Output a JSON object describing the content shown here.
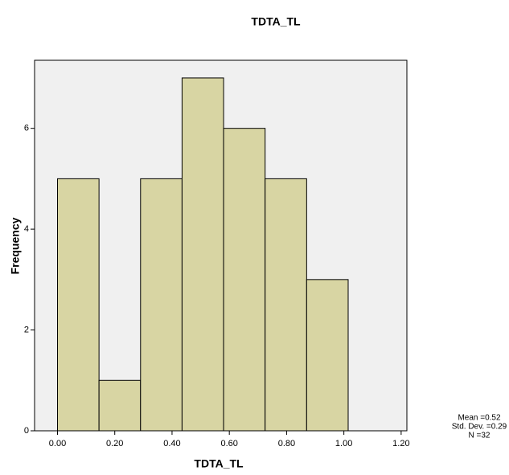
{
  "chart_data": {
    "type": "histogram",
    "title": "TDTA_TL",
    "x_label": "TDTA_TL",
    "y_label": "Frequency",
    "bins": [
      0,
      0.145,
      0.29,
      0.435,
      0.58,
      0.725,
      0.87,
      1.015
    ],
    "values": [
      5,
      1,
      5,
      7,
      6,
      5,
      3
    ],
    "color": "#d8d5a3",
    "xlim": [
      -0.08,
      1.22
    ],
    "xticks": [
      {
        "value": 0,
        "label": "0.00"
      },
      {
        "value": 0.2,
        "label": "0.20"
      },
      {
        "value": 0.4,
        "label": "0.40"
      },
      {
        "value": 0.6,
        "label": "0.60"
      },
      {
        "value": 0.8,
        "label": "0.80"
      },
      {
        "value": 1,
        "label": "1.00"
      },
      {
        "value": 1.2,
        "label": "1.20"
      }
    ],
    "ylim": [
      0,
      7.35
    ],
    "yticks": [
      0,
      2,
      4,
      6
    ],
    "stats": [
      "Mean =0.52",
      "Std. Dev. =0.29",
      "N =32"
    ]
  }
}
